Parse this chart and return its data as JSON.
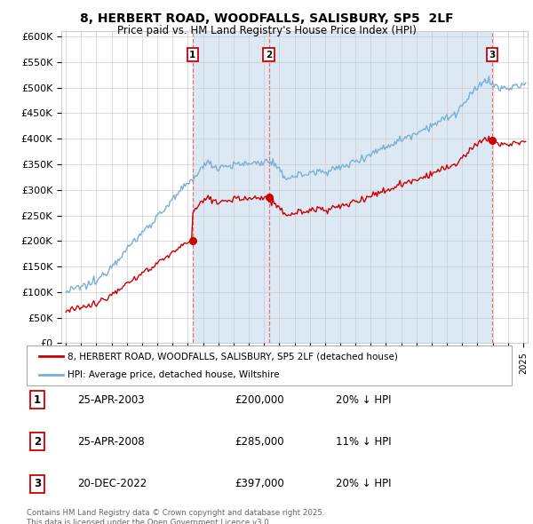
{
  "title": "8, HERBERT ROAD, WOODFALLS, SALISBURY, SP5  2LF",
  "subtitle": "Price paid vs. HM Land Registry's House Price Index (HPI)",
  "ylabel_ticks": [
    "£0",
    "£50K",
    "£100K",
    "£150K",
    "£200K",
    "£250K",
    "£300K",
    "£350K",
    "£400K",
    "£450K",
    "£500K",
    "£550K",
    "£600K"
  ],
  "ytick_values": [
    0,
    50000,
    100000,
    150000,
    200000,
    250000,
    300000,
    350000,
    400000,
    450000,
    500000,
    550000,
    600000
  ],
  "ylim": [
    0,
    610000
  ],
  "xlim_start": 1994.7,
  "xlim_end": 2025.3,
  "sale_dates": [
    2003.32,
    2008.32,
    2022.97
  ],
  "sale_prices": [
    200000,
    285000,
    397000
  ],
  "sale_labels": [
    "1",
    "2",
    "3"
  ],
  "legend_red": "8, HERBERT ROAD, WOODFALLS, SALISBURY, SP5 2LF (detached house)",
  "legend_blue": "HPI: Average price, detached house, Wiltshire",
  "transaction_table": [
    {
      "num": "1",
      "date": "25-APR-2003",
      "price": "£200,000",
      "note": "20% ↓ HPI"
    },
    {
      "num": "2",
      "date": "25-APR-2008",
      "price": "£285,000",
      "note": "11% ↓ HPI"
    },
    {
      "num": "3",
      "date": "20-DEC-2022",
      "price": "£397,000",
      "note": "20% ↓ HPI"
    }
  ],
  "footer": "Contains HM Land Registry data © Crown copyright and database right 2025.\nThis data is licensed under the Open Government Licence v3.0.",
  "red_color": "#cc0000",
  "blue_color": "#7bafd4",
  "vline_color": "#e87070",
  "shade_color": "#dce9f5",
  "grid_color": "#cccccc",
  "background_color": "#ffffff"
}
